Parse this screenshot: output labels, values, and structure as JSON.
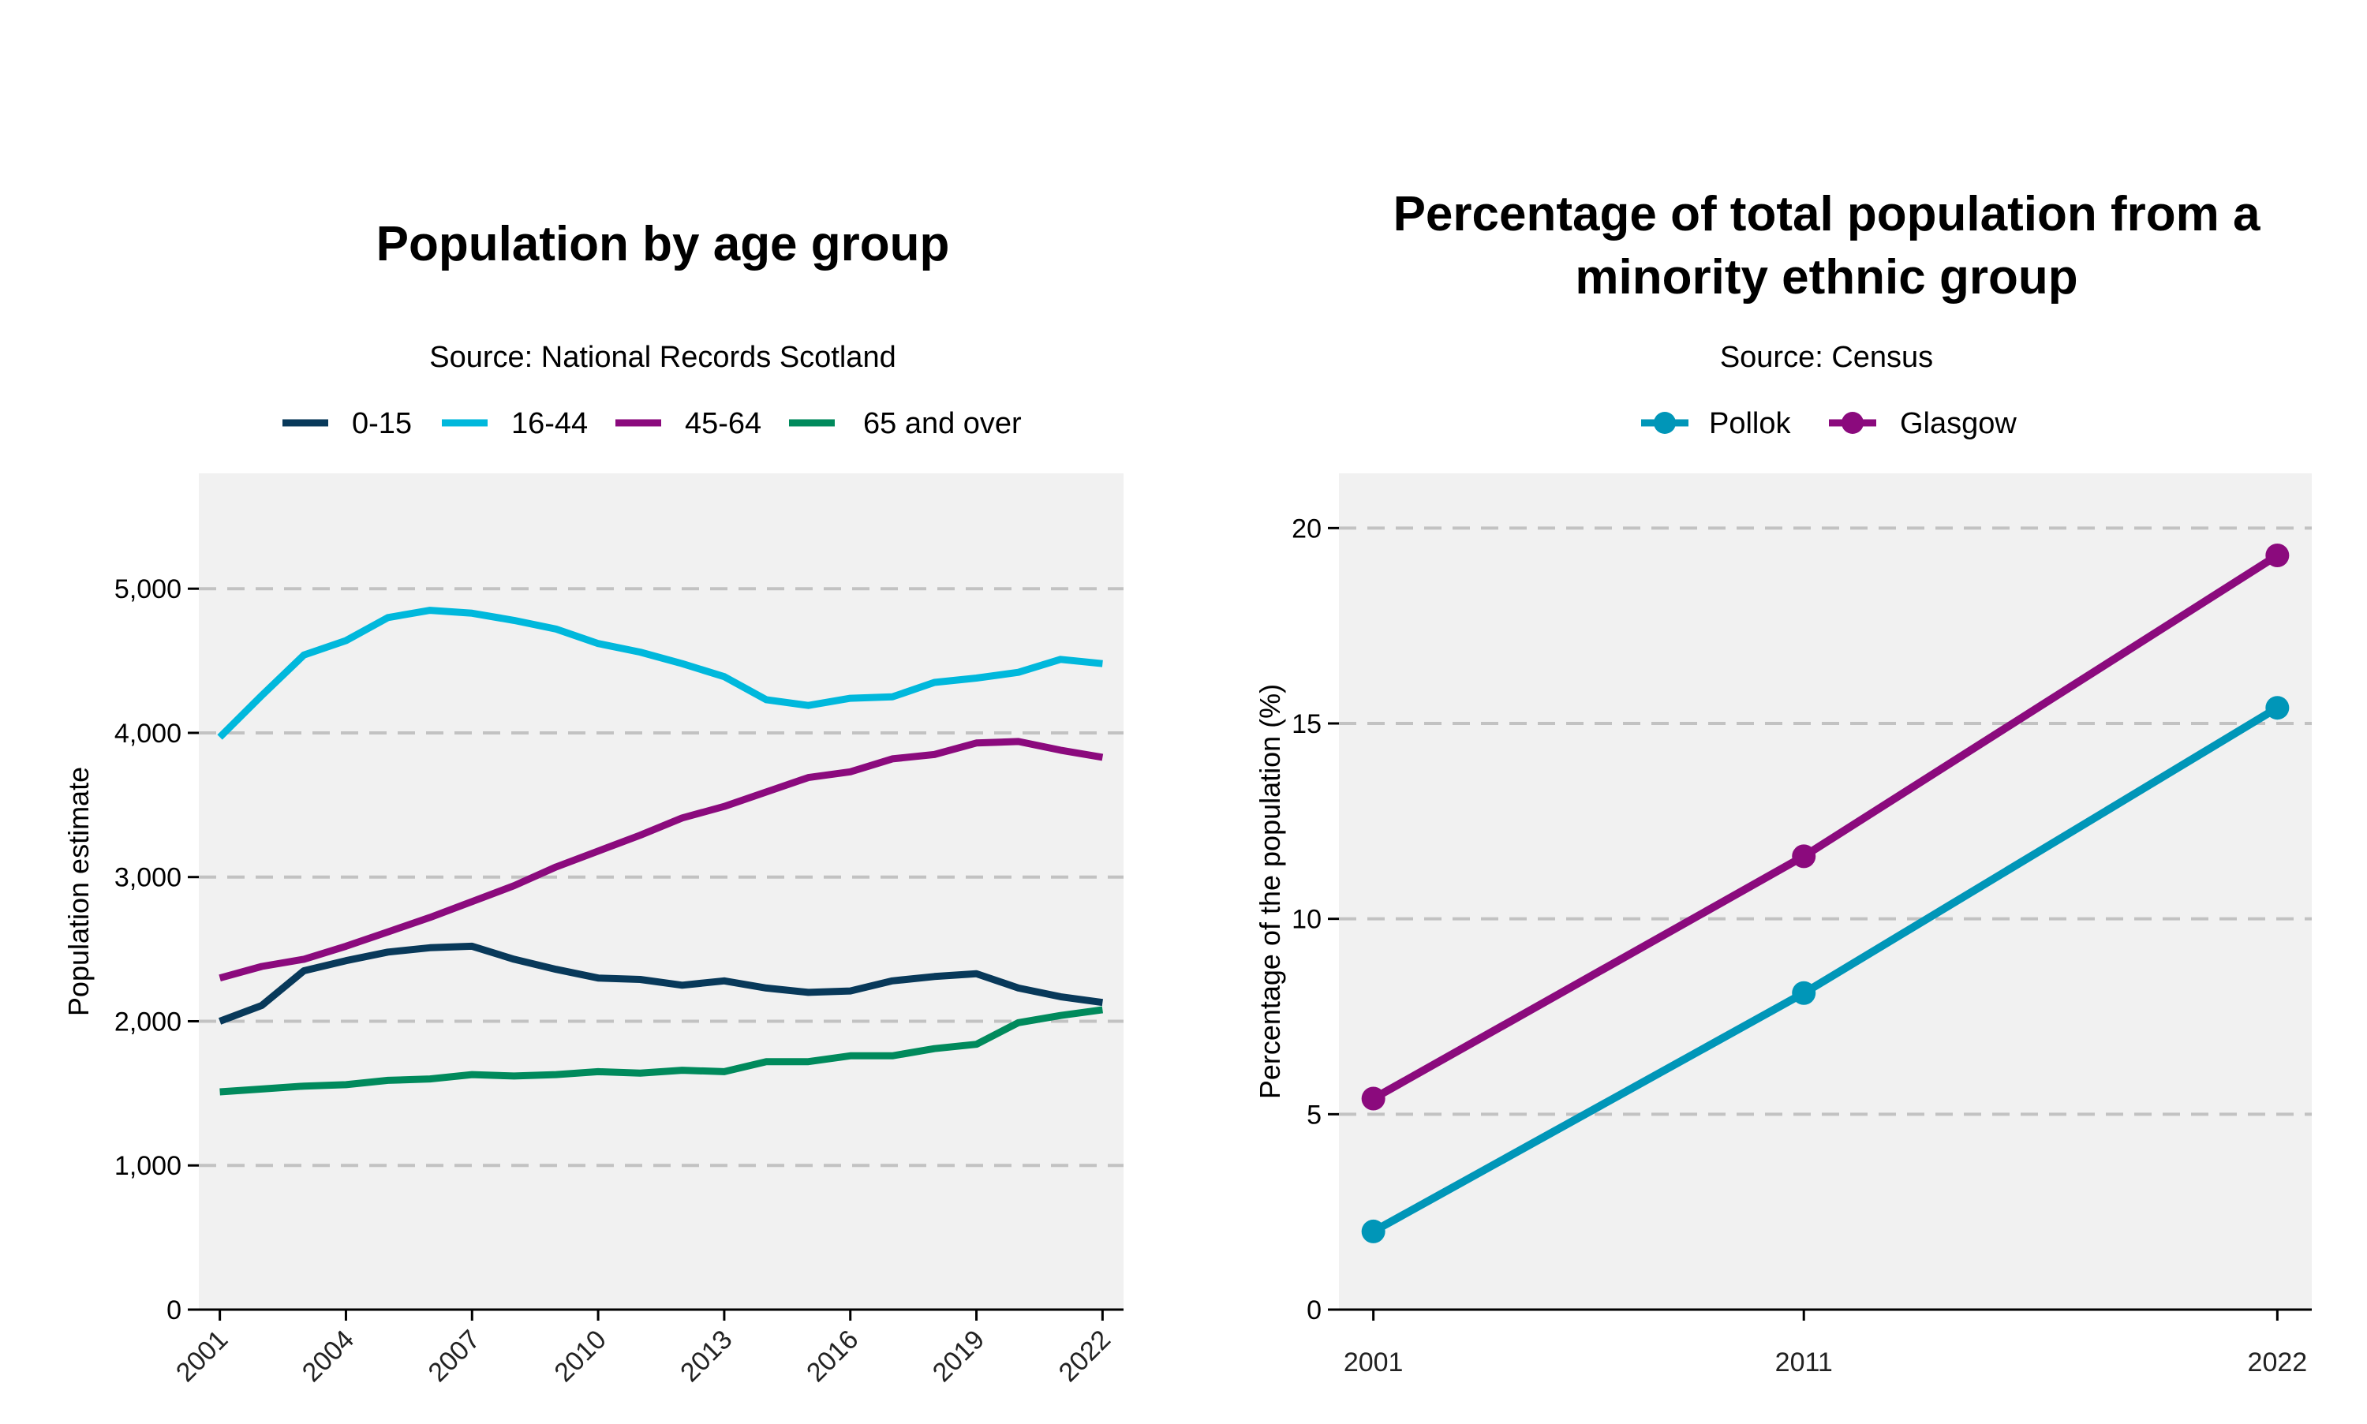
{
  "colors": {
    "age_0_15": "#08395a",
    "age_16_44": "#00b8dc",
    "age_45_64": "#8b0a7d",
    "age_65_over": "#008a5c",
    "pollok": "#0096b8",
    "glasgow": "#8b0a7d",
    "panel_bg": "#f1f1f1",
    "grid": "#c2c2c2"
  },
  "chart_data": [
    {
      "type": "line",
      "title": "Population by age group",
      "subtitle": "Source: National Records Scotland",
      "xlabel": "",
      "ylabel": "Population estimate",
      "grid": "horizontal dashed",
      "legend_position": "top",
      "ylim": [
        0,
        5800
      ],
      "xlim": [
        2000.5,
        2022.5
      ],
      "y_ticks": [
        0,
        1000,
        2000,
        3000,
        4000,
        5000
      ],
      "y_tick_labels": [
        "0",
        "1,000",
        "2,000",
        "3,000",
        "4,000",
        "5,000"
      ],
      "x_ticks": [
        2001,
        2004,
        2007,
        2010,
        2013,
        2016,
        2019,
        2022
      ],
      "x_tick_labels": [
        "2001",
        "2004",
        "2007",
        "2010",
        "2013",
        "2016",
        "2019",
        "2022"
      ],
      "x": [
        2001,
        2002,
        2003,
        2004,
        2005,
        2006,
        2007,
        2008,
        2009,
        2010,
        2011,
        2012,
        2013,
        2014,
        2015,
        2016,
        2017,
        2018,
        2019,
        2020,
        2021,
        2022
      ],
      "series": [
        {
          "name": "0-15",
          "color": "#08395a",
          "values": [
            2000,
            2110,
            2350,
            2420,
            2480,
            2510,
            2520,
            2430,
            2360,
            2300,
            2290,
            2250,
            2280,
            2230,
            2200,
            2210,
            2280,
            2310,
            2330,
            2230,
            2170,
            2130
          ]
        },
        {
          "name": "16-44",
          "color": "#00b8dc",
          "values": [
            3970,
            4260,
            4540,
            4640,
            4800,
            4850,
            4830,
            4780,
            4720,
            4620,
            4560,
            4480,
            4390,
            4230,
            4190,
            4240,
            4250,
            4350,
            4380,
            4420,
            4510,
            4480
          ]
        },
        {
          "name": "45-64",
          "color": "#8b0a7d",
          "values": [
            2300,
            2380,
            2430,
            2520,
            2620,
            2720,
            2830,
            2940,
            3070,
            3180,
            3290,
            3410,
            3490,
            3590,
            3690,
            3730,
            3820,
            3850,
            3930,
            3940,
            3880,
            3830
          ]
        },
        {
          "name": "65 and over",
          "color": "#008a5c",
          "values": [
            1510,
            1530,
            1550,
            1560,
            1590,
            1600,
            1630,
            1620,
            1630,
            1650,
            1640,
            1660,
            1650,
            1720,
            1720,
            1760,
            1760,
            1810,
            1840,
            1990,
            2040,
            2080
          ]
        }
      ]
    },
    {
      "type": "line",
      "title_lines": [
        "Percentage of total population from a",
        "minority ethnic group"
      ],
      "subtitle": "Source: Census",
      "xlabel": "",
      "ylabel": "Percentage of the population (%)",
      "grid": "horizontal dashed",
      "legend_position": "top",
      "ylim": [
        0,
        21.4
      ],
      "xlim": [
        2000.2,
        2022.8
      ],
      "y_ticks": [
        0,
        5,
        10,
        15,
        20
      ],
      "y_tick_labels": [
        "0",
        "5",
        "10",
        "15",
        "20"
      ],
      "categories": [
        "2001",
        "2011",
        "2022"
      ],
      "x": [
        2001,
        2011,
        2022
      ],
      "series": [
        {
          "name": "Pollok",
          "color": "#0096b8",
          "values": [
            2.0,
            8.1,
            15.4
          ]
        },
        {
          "name": "Glasgow",
          "color": "#8b0a7d",
          "values": [
            5.4,
            11.6,
            19.3
          ]
        }
      ]
    }
  ]
}
